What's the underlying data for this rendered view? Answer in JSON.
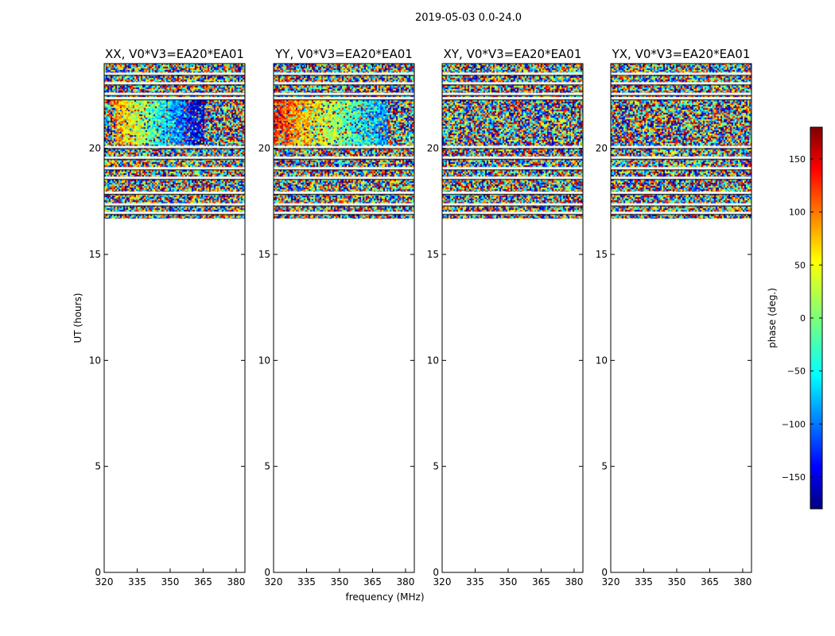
{
  "figure": {
    "suptitle": "2019-05-03 0.0-24.0"
  },
  "chart_data": {
    "type": "heatmap",
    "suptitle": "2019-05-03 0.0-24.0",
    "xlabel": "frequency (MHz)",
    "ylabel": "UT (hours)",
    "xlim": [
      320,
      384
    ],
    "ylim": [
      0,
      24
    ],
    "x_ticks": [
      320,
      335,
      350,
      365,
      380
    ],
    "y_ticks": [
      0,
      5,
      10,
      15,
      20
    ],
    "colormap": "jet",
    "data_time_range_hours": [
      16.7,
      24.0
    ],
    "flagged_rows_hours": [
      16.95,
      17.35,
      17.9,
      18.6,
      19.05,
      19.55,
      20.05,
      22.35,
      22.55,
      23.05,
      23.5
    ],
    "panels": [
      {
        "title": "XX, V0*V3=EA20*EA01",
        "pattern": "phase-gradient",
        "gradient_freq_range": [
          325,
          365
        ],
        "gradient_time_range": [
          20.2,
          22.3
        ]
      },
      {
        "title": "YY, V0*V3=EA20*EA01",
        "pattern": "phase-gradient",
        "gradient_freq_range": [
          320,
          372
        ],
        "gradient_time_range": [
          20.2,
          22.3
        ]
      },
      {
        "title": "XY, V0*V3=EA20*EA01",
        "pattern": "noise"
      },
      {
        "title": "YX, V0*V3=EA20*EA01",
        "pattern": "noise"
      }
    ],
    "colorbar": {
      "label": "phase (deg.)",
      "range": [
        -180,
        180
      ],
      "ticks": [
        -150,
        -100,
        -50,
        0,
        50,
        100,
        150
      ],
      "tick_labels": [
        "−150",
        "−100",
        "−50",
        "0",
        "50",
        "100",
        "150"
      ]
    }
  }
}
